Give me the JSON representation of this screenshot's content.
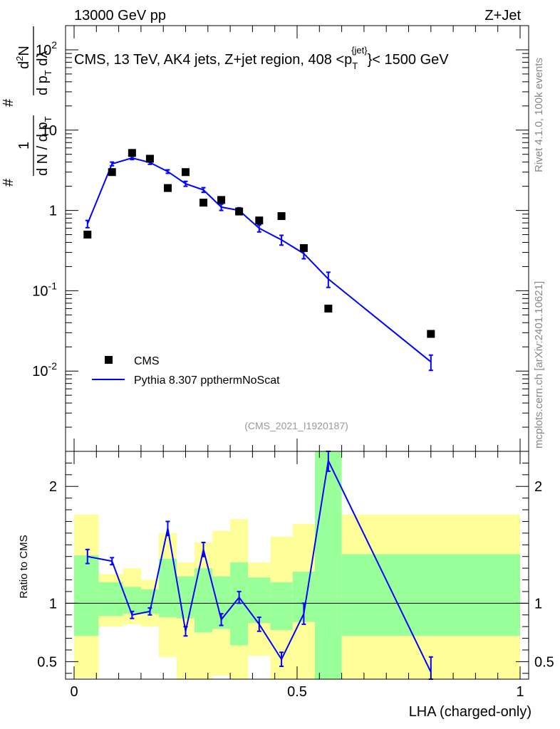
{
  "header": {
    "left": "13000 GeV pp",
    "right": "Z+Jet"
  },
  "side_labels": {
    "rivet": "Rivet 4.1.0,  100k events",
    "mcplots": "mcplots.cern.ch [arXiv:2401.10621]"
  },
  "chart_data": [
    {
      "type": "scatter",
      "panel": "main",
      "title": "CMS, 13 TeV, AK4 jets, Z+jet region, 408 <p_T^{jet}< 1500 GeV",
      "title_parts": {
        "prefix": "CMS, 13 TeV, AK4 jets, Z+jet region, 408 <p",
        "sub": "T",
        "sup": "{jet}",
        "suffix": "}< 1500 GeV"
      },
      "ylabel": "1/(dN/dp_T) d^2N/(dp_T dλ)",
      "ylabel_parts": {
        "n1": "1",
        "d1": "d N / d p",
        "d1sub": "T",
        "n2": "d",
        "n2sup": "2",
        "n2b": "N",
        "d2": "d p",
        "d2sub": "T",
        "d2b": " dλ",
        "hash": "#"
      },
      "yscale": "log",
      "ylim": [
        0.001,
        200
      ],
      "xlim": [
        0,
        1
      ],
      "y_ticks": [
        {
          "value": 0.01,
          "base": "10",
          "exp": "-2"
        },
        {
          "value": 0.1,
          "base": "10",
          "exp": "-1"
        },
        {
          "value": 1,
          "base": "1",
          "exp": ""
        },
        {
          "value": 10,
          "base": "10",
          "exp": ""
        },
        {
          "value": 100,
          "base": "10",
          "exp": "2"
        }
      ],
      "watermark": "(CMS_2021_I1920187)",
      "legend": {
        "placement": "bottom-left",
        "entries": [
          "CMS",
          "Pythia 8.307 ppthermNoScat"
        ]
      },
      "series": [
        {
          "name": "CMS",
          "style": "markers",
          "color": "#000000",
          "x": [
            0.03,
            0.085,
            0.13,
            0.17,
            0.21,
            0.25,
            0.29,
            0.33,
            0.37,
            0.415,
            0.465,
            0.515,
            0.57,
            0.8
          ],
          "y": [
            0.5,
            3.0,
            5.2,
            4.4,
            1.9,
            3.0,
            1.25,
            1.35,
            0.97,
            0.75,
            0.85,
            0.34,
            0.06,
            0.029
          ]
        },
        {
          "name": "Pythia 8.307 ppthermNoScat",
          "style": "line",
          "color": "#0000ff",
          "x": [
            0.03,
            0.085,
            0.13,
            0.17,
            0.21,
            0.25,
            0.29,
            0.33,
            0.37,
            0.415,
            0.465,
            0.515,
            0.57,
            0.8
          ],
          "y": [
            0.68,
            3.8,
            4.5,
            3.95,
            3.05,
            2.15,
            1.8,
            1.1,
            1.0,
            0.6,
            0.43,
            0.29,
            0.14,
            0.013
          ],
          "err_up": [
            0.07,
            0.2,
            0.2,
            0.2,
            0.15,
            0.15,
            0.12,
            0.1,
            0.08,
            0.06,
            0.06,
            0.04,
            0.03,
            0.0028
          ],
          "err_down": [
            0.07,
            0.2,
            0.2,
            0.2,
            0.15,
            0.15,
            0.12,
            0.1,
            0.08,
            0.06,
            0.06,
            0.04,
            0.03,
            0.0028
          ]
        }
      ]
    },
    {
      "type": "line",
      "panel": "ratio",
      "ylabel": "Ratio to CMS",
      "xlabel": "LHA (charged-only)",
      "xlim": [
        0,
        1
      ],
      "ylim": [
        0.35,
        2.3
      ],
      "x_ticks": [
        {
          "value": 0,
          "label": "0"
        },
        {
          "value": 0.5,
          "label": "0.5"
        },
        {
          "value": 1,
          "label": "1"
        }
      ],
      "y_ticks": [
        {
          "value": 0.5,
          "label": "0.5"
        },
        {
          "value": 1,
          "label": "1"
        },
        {
          "value": 2,
          "label": "2"
        }
      ],
      "reference_line": 1,
      "uncertainty_bands": {
        "bins": [
          [
            0.0,
            0.055
          ],
          [
            0.055,
            0.11
          ],
          [
            0.11,
            0.15
          ],
          [
            0.15,
            0.19
          ],
          [
            0.19,
            0.23
          ],
          [
            0.23,
            0.27
          ],
          [
            0.27,
            0.31
          ],
          [
            0.31,
            0.35
          ],
          [
            0.35,
            0.39
          ],
          [
            0.39,
            0.44
          ],
          [
            0.44,
            0.49
          ],
          [
            0.49,
            0.54
          ],
          [
            0.54,
            0.6
          ],
          [
            0.6,
            1.0
          ]
        ],
        "green_low": [
          0.72,
          0.89,
          0.91,
          0.91,
          0.88,
          0.87,
          0.75,
          0.78,
          0.64,
          0.83,
          0.77,
          0.84,
          0.35,
          0.72
        ],
        "green_high": [
          1.41,
          1.18,
          1.14,
          1.12,
          1.38,
          1.23,
          1.3,
          1.23,
          1.35,
          1.22,
          1.18,
          1.27,
          2.3,
          1.42
        ],
        "yellow_low": [
          0.36,
          0.8,
          0.82,
          0.8,
          0.54,
          0.35,
          0.35,
          0.38,
          0.35,
          0.55,
          0.35,
          0.35,
          0.35,
          0.35
        ],
        "yellow_high": [
          1.76,
          1.25,
          1.3,
          1.2,
          1.6,
          1.35,
          1.52,
          1.62,
          1.72,
          1.35,
          1.57,
          1.68,
          2.3,
          1.76
        ],
        "green_color": "#99ff99",
        "yellow_color": "#ffff99"
      },
      "series": [
        {
          "name": "Pythia 8.307 ppthermNoScat / CMS",
          "color": "#0000ff",
          "x": [
            0.03,
            0.085,
            0.13,
            0.17,
            0.21,
            0.25,
            0.29,
            0.33,
            0.37,
            0.415,
            0.465,
            0.515,
            0.57,
            0.8
          ],
          "y": [
            1.4,
            1.36,
            0.9,
            0.93,
            1.64,
            0.76,
            1.46,
            0.86,
            1.05,
            0.82,
            0.52,
            0.91,
            2.22,
            0.41
          ],
          "err": [
            0.06,
            0.03,
            0.03,
            0.03,
            0.06,
            0.04,
            0.06,
            0.05,
            0.05,
            0.06,
            0.06,
            0.09,
            0.09,
            0.13
          ]
        }
      ]
    }
  ]
}
